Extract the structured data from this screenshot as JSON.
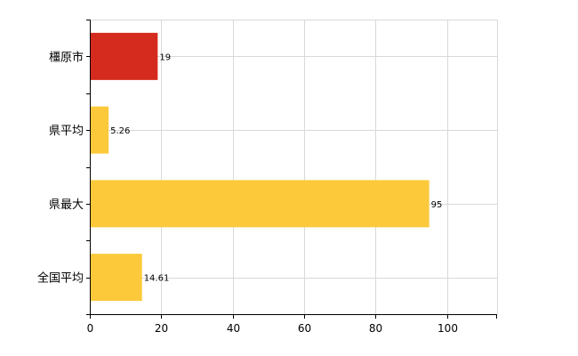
{
  "chart_data": {
    "type": "bar",
    "orientation": "horizontal",
    "categories": [
      "橿原市",
      "県平均",
      "県最大",
      "全国平均"
    ],
    "values": [
      19,
      5.26,
      95,
      14.61
    ],
    "value_labels": [
      "19",
      "5.26",
      "95",
      "14.61"
    ],
    "bar_colors": [
      "#d52b1e",
      "#fcc93b",
      "#fcc93b",
      "#fcc93b"
    ],
    "xlim": [
      0,
      114
    ],
    "x_ticks": [
      0,
      20,
      40,
      60,
      80,
      100
    ],
    "x_tick_labels": [
      "0",
      "20",
      "40",
      "60",
      "80",
      "100"
    ],
    "title": "",
    "xlabel": "",
    "ylabel": "",
    "grid": true,
    "legend": "none"
  }
}
